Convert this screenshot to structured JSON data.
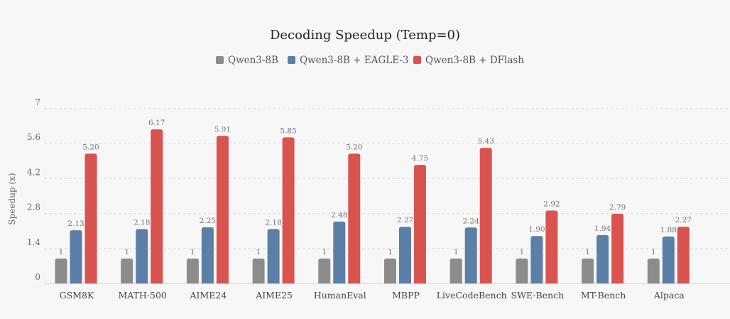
{
  "chart_data": {
    "type": "bar",
    "title": "Decoding Speedup (Temp=0)",
    "xlabel": "",
    "ylabel": "Speedup (x)",
    "ylim": [
      0,
      7
    ],
    "yticks": [
      "0",
      "1.4",
      "2.8",
      "4.2",
      "5.6",
      "7"
    ],
    "grid": true,
    "legend_position": "top-center",
    "categories": [
      "GSM8K",
      "MATH-500",
      "AIME24",
      "AIME25",
      "HumanEval",
      "MBPP",
      "LiveCodeBench",
      "SWE-Bench",
      "MT-Bench",
      "Alpaca"
    ],
    "series": [
      {
        "name": "Qwen3-8B",
        "color": "#8c8c8c",
        "values": [
          1,
          1,
          1,
          1,
          1,
          1,
          1,
          1,
          1,
          1
        ],
        "labels": [
          "1",
          "1",
          "1",
          "1",
          "1",
          "1",
          "1",
          "1",
          "1",
          "1"
        ]
      },
      {
        "name": "Qwen3-8B + EAGLE-3",
        "color": "#5b7fa6",
        "values": [
          2.13,
          2.18,
          2.25,
          2.18,
          2.48,
          2.27,
          2.24,
          1.9,
          1.94,
          1.88
        ],
        "labels": [
          "2.13",
          "2.18",
          "2.25",
          "2.18",
          "2.48",
          "2.27",
          "2.24",
          "1.90",
          "1.94",
          "1.88"
        ]
      },
      {
        "name": "Qwen3-8B + DFlash",
        "color": "#d9534f",
        "values": [
          5.2,
          6.17,
          5.91,
          5.85,
          5.2,
          4.75,
          5.43,
          2.92,
          2.79,
          2.27
        ],
        "labels": [
          "5.20",
          "6.17",
          "5.91",
          "5.85",
          "5.20",
          "4.75",
          "5.43",
          "2.92",
          "2.79",
          "2.27"
        ]
      }
    ]
  }
}
